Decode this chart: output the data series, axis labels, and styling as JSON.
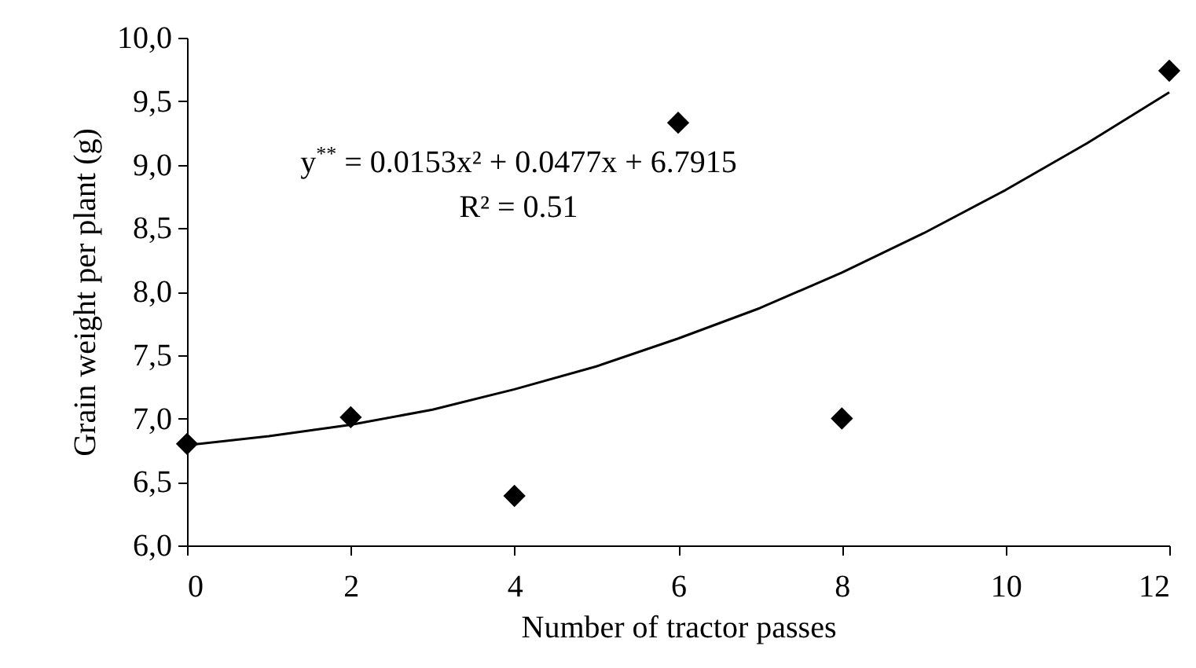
{
  "chart_data": {
    "type": "scatter",
    "xlabel": "Number of tractor passes",
    "ylabel": "Grain weight per plant (g)",
    "xlim": [
      0,
      12
    ],
    "xticks": [
      0,
      2,
      4,
      6,
      8,
      10,
      12
    ],
    "ylim": [
      6,
      10
    ],
    "yticks": [
      {
        "value": 6,
        "label": "6,0"
      },
      {
        "value": 6.5,
        "label": "6,5"
      },
      {
        "value": 7,
        "label": "7,0"
      },
      {
        "value": 7.5,
        "label": "7,5"
      },
      {
        "value": 8,
        "label": "8,0"
      },
      {
        "value": 8.5,
        "label": "8,5"
      },
      {
        "value": 9,
        "label": "9,0"
      },
      {
        "value": 9.5,
        "label": "9,5"
      },
      {
        "value": 10,
        "label": "10,0"
      }
    ],
    "grid": false,
    "annotations": [
      "y$^{**}$ = 0.0153x² + 0.0477x + 6.7915",
      "R² = 0.51"
    ],
    "series": [
      {
        "color": "#000000",
        "marker": "diamond",
        "x": [
          0,
          2,
          4,
          6,
          8,
          12
        ],
        "values": [
          6.8,
          7.01,
          6.39,
          9.33,
          7.0,
          9.74
        ]
      },
      {
        "type": "line",
        "color": "#000000",
        "line_style": "solid",
        "x": [
          0,
          1,
          2,
          3,
          4,
          5,
          6,
          7,
          8,
          9,
          10,
          11,
          12
        ],
        "values": [
          6.79,
          6.86,
          6.95,
          7.07,
          7.23,
          7.41,
          7.63,
          7.87,
          8.15,
          8.46,
          8.8,
          9.17,
          9.57
        ]
      }
    ]
  }
}
